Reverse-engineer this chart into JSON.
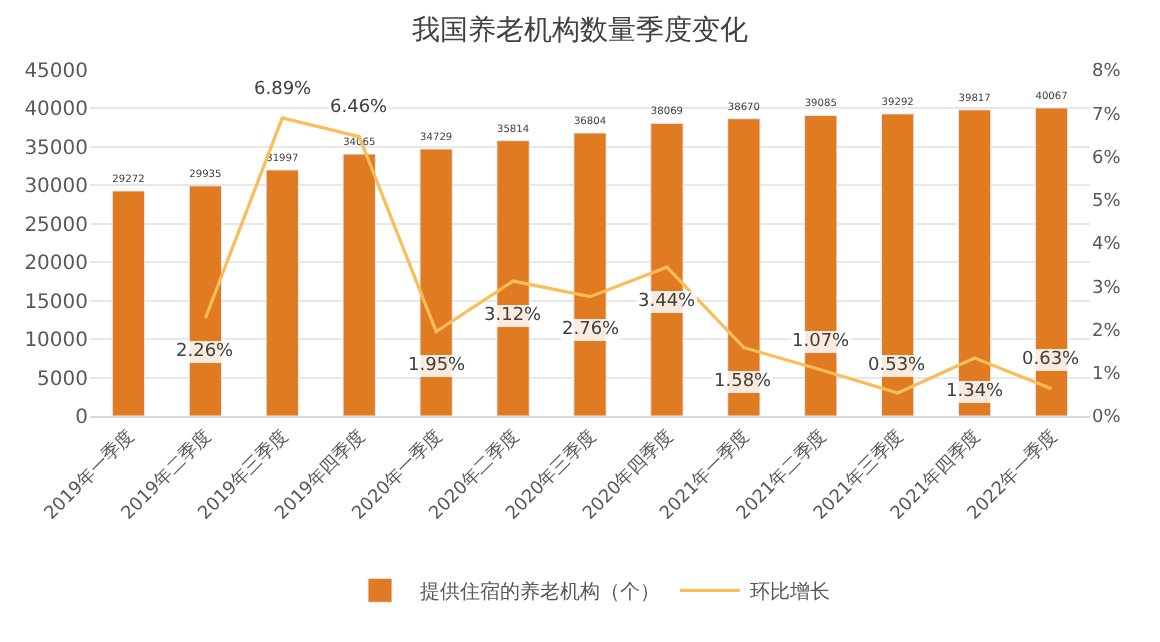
{
  "chart_data": {
    "type": "bar",
    "title": "我国养老机构数量季度变化",
    "categories": [
      "2019年一季度",
      "2019年二季度",
      "2019年三季度",
      "2019年四季度",
      "2020年一季度",
      "2020年二季度",
      "2020年三季度",
      "2020年四季度",
      "2021年一季度",
      "2021年二季度",
      "2021年三季度",
      "2021年四季度",
      "2022年一季度"
    ],
    "series": [
      {
        "name": "提供住宿的养老机构（个）",
        "color": "#e07b22",
        "values": [
          29272,
          29935,
          31997,
          34065,
          34729,
          35814,
          36804,
          38069,
          38670,
          39085,
          39292,
          39817,
          40067
        ],
        "value_labels": [
          "29272",
          "29935",
          "31997",
          "34065",
          "34729",
          "35814",
          "36804",
          "38069",
          "38670",
          "39085",
          "39292",
          "39817",
          "40067"
        ]
      },
      {
        "name": "环比增长",
        "type": "line",
        "axis": "y2",
        "color": "#f9bd5a",
        "values": [
          null,
          2.26,
          6.89,
          6.46,
          1.95,
          3.12,
          2.76,
          3.44,
          1.58,
          1.07,
          0.53,
          1.34,
          0.63
        ],
        "value_labels": [
          null,
          "2.26%",
          "6.89%",
          "6.46%",
          "1.95%",
          "3.12%",
          "2.76%",
          "3.44%",
          "1.58%",
          "1.07%",
          "0.53%",
          "1.34%",
          "0.63%"
        ]
      }
    ],
    "ylim": [
      0,
      45000
    ],
    "yticks": [
      0,
      5000,
      10000,
      15000,
      20000,
      25000,
      30000,
      35000,
      40000,
      45000
    ],
    "y2lim": [
      0,
      8
    ],
    "y2ticks": [
      {
        "value": 0,
        "label": "0%"
      },
      {
        "value": 1,
        "label": "1%"
      },
      {
        "value": 2,
        "label": "2%"
      },
      {
        "value": 3,
        "label": "3%"
      },
      {
        "value": 4,
        "label": "4%"
      },
      {
        "value": 5,
        "label": "5%"
      },
      {
        "value": 6,
        "label": "6%"
      },
      {
        "value": 7,
        "label": "7%"
      },
      {
        "value": 8,
        "label": "8%"
      }
    ],
    "grid": "y",
    "legend": "bottom",
    "marker": "none"
  }
}
